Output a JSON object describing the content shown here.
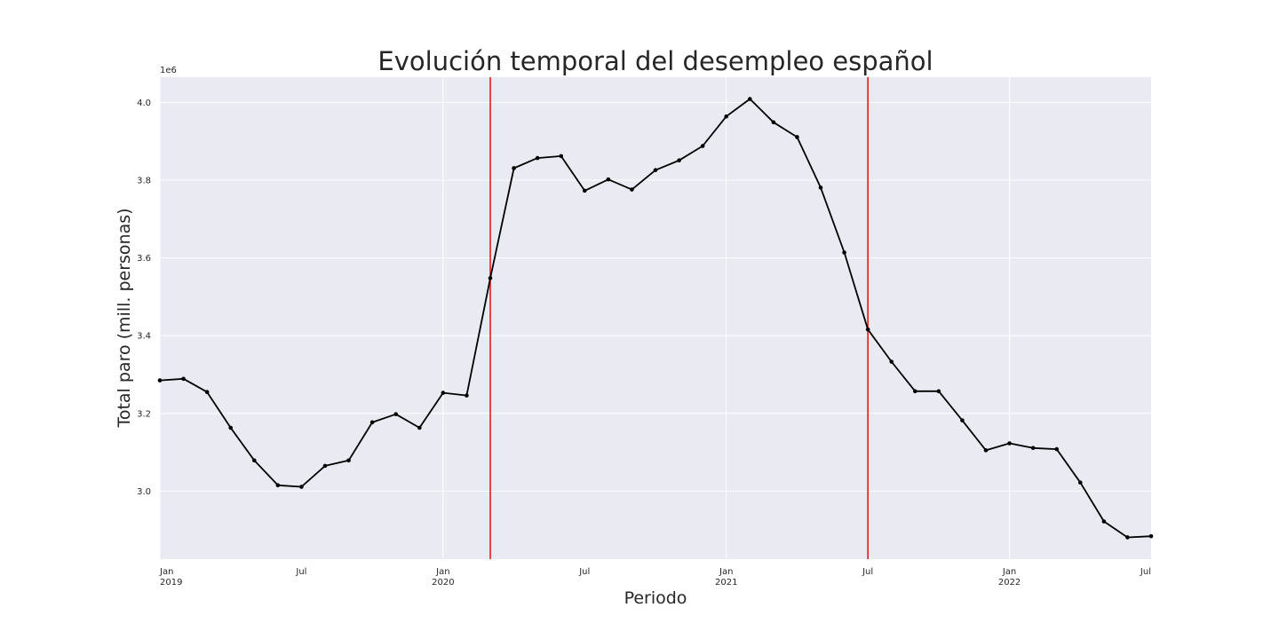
{
  "chart_data": {
    "type": "line",
    "title": "Evolución temporal del desempleo español",
    "xlabel": "Periodo",
    "ylabel": "Total paro (mill. personas)",
    "y_offset_label": "1e6",
    "ylim": [
      2825000,
      4065000
    ],
    "xlim": [
      "2019-01",
      "2022-07"
    ],
    "grid": true,
    "colors": {
      "background": "#eaeaf2",
      "grid": "#ffffff",
      "line": "#000000",
      "vline": "#e41a1c"
    },
    "yticks": [
      {
        "value": 3000000,
        "label": "3.0"
      },
      {
        "value": 3200000,
        "label": "3.2"
      },
      {
        "value": 3400000,
        "label": "3.4"
      },
      {
        "value": 3600000,
        "label": "3.6"
      },
      {
        "value": 3800000,
        "label": "3.8"
      },
      {
        "value": 4000000,
        "label": "4.0"
      }
    ],
    "xticks": [
      {
        "date": "2019-01",
        "label": "Jan",
        "year": "2019",
        "major": true
      },
      {
        "date": "2019-07",
        "label": "Jul",
        "year": "",
        "major": false
      },
      {
        "date": "2020-01",
        "label": "Jan",
        "year": "2020",
        "major": true
      },
      {
        "date": "2020-07",
        "label": "Jul",
        "year": "",
        "major": false
      },
      {
        "date": "2021-01",
        "label": "Jan",
        "year": "2021",
        "major": true
      },
      {
        "date": "2021-07",
        "label": "Jul",
        "year": "",
        "major": false
      },
      {
        "date": "2022-01",
        "label": "Jan",
        "year": "2022",
        "major": true
      },
      {
        "date": "2022-07",
        "label": "Jul",
        "year": "",
        "major": false
      }
    ],
    "vlines": [
      "2020-03",
      "2021-07"
    ],
    "series": [
      {
        "x": [
          "2019-01",
          "2019-02",
          "2019-03",
          "2019-04",
          "2019-05",
          "2019-06",
          "2019-07",
          "2019-08",
          "2019-09",
          "2019-10",
          "2019-11",
          "2019-12",
          "2020-01",
          "2020-02",
          "2020-03",
          "2020-04",
          "2020-05",
          "2020-06",
          "2020-07",
          "2020-08",
          "2020-09",
          "2020-10",
          "2020-11",
          "2020-12",
          "2021-01",
          "2021-02",
          "2021-03",
          "2021-04",
          "2021-05",
          "2021-06",
          "2021-07",
          "2021-08",
          "2021-09",
          "2021-10",
          "2021-11",
          "2021-12",
          "2022-01",
          "2022-02",
          "2022-03",
          "2022-04",
          "2022-05",
          "2022-06",
          "2022-07"
        ],
        "values": [
          3285000,
          3289000,
          3255000,
          3163000,
          3079000,
          3015000,
          3011000,
          3065000,
          3079000,
          3177000,
          3198000,
          3163000,
          3253000,
          3246000,
          3548000,
          3831000,
          3857000,
          3862000,
          3773000,
          3802000,
          3776000,
          3826000,
          3851000,
          3888000,
          3964000,
          4009000,
          3949000,
          3911000,
          3781000,
          3614000,
          3416000,
          3333000,
          3257000,
          3257000,
          3182000,
          3105000,
          3123000,
          3111000,
          3108000,
          3022000,
          2922000,
          2881000,
          2884000
        ]
      }
    ]
  }
}
